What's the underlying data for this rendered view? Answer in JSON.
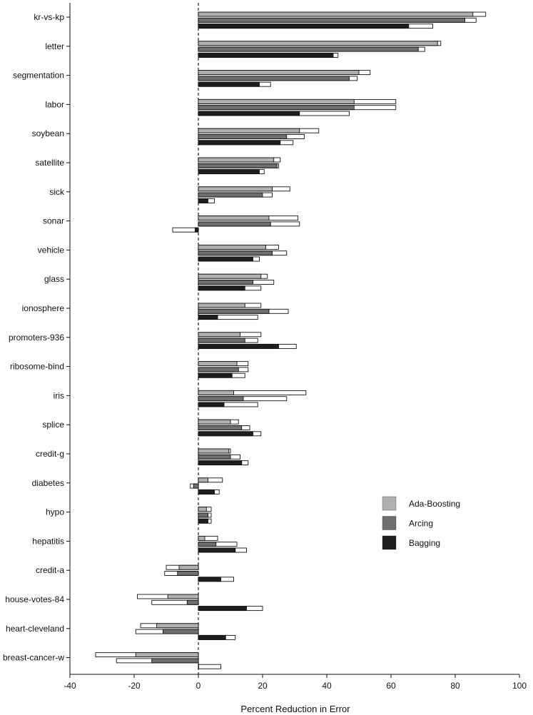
{
  "chart_data": {
    "type": "bar",
    "orientation": "horizontal",
    "xlabel": "Percent Reduction in Error",
    "xlim": [
      -40,
      100
    ],
    "xticks": [
      -40,
      -20,
      0,
      20,
      40,
      60,
      80,
      100
    ],
    "legend_position": "right",
    "categories": [
      "kr-vs-kp",
      "letter",
      "segmentation",
      "labor",
      "soybean",
      "satellite",
      "sick",
      "sonar",
      "vehicle",
      "glass",
      "ionosphere",
      "promoters-936",
      "ribosome-bind",
      "iris",
      "splice",
      "credit-g",
      "diabetes",
      "hypo",
      "hepatitis",
      "credit-a",
      "house-votes-84",
      "heart-cleveland",
      "breast-cancer-w"
    ],
    "series": [
      {
        "name": "Ada-Boosting",
        "color": "#b0b0b0",
        "values": [
          85.5,
          74.5,
          50,
          48.5,
          31.5,
          23.5,
          23,
          22,
          21,
          19.5,
          14.5,
          13,
          12,
          11,
          10,
          9.5,
          3,
          2.5,
          2,
          -6,
          -9.5,
          -13,
          -19.5
        ],
        "extended": [
          89.5,
          75.5,
          53.5,
          61.5,
          37.5,
          25.5,
          28.5,
          31,
          25,
          21.5,
          19.5,
          19.5,
          15.5,
          33.5,
          12.5,
          10,
          7.5,
          4,
          6,
          -10,
          -19,
          -18,
          -32
        ]
      },
      {
        "name": "Arcing",
        "color": "#6e6e6e",
        "values": [
          83,
          68.5,
          47,
          48.5,
          27.5,
          24.5,
          20,
          22.5,
          23,
          17,
          22,
          14.5,
          12.5,
          14,
          13.5,
          10,
          -1.5,
          3,
          5.5,
          -6.5,
          -3.5,
          -11,
          -14.5
        ],
        "extended": [
          86.5,
          70.5,
          49.5,
          61.5,
          33,
          25,
          23,
          31.5,
          27.5,
          23.5,
          28,
          18.5,
          15.5,
          27.5,
          16,
          13,
          -2.5,
          4,
          12,
          -10.5,
          -14.5,
          -19.5,
          -25.5
        ]
      },
      {
        "name": "Bagging",
        "color": "#1e1e1e",
        "values": [
          65.5,
          42,
          19,
          31.5,
          25.5,
          19,
          3,
          -1,
          17,
          14.5,
          6,
          25,
          10.5,
          8,
          17,
          13.5,
          5,
          3,
          11.5,
          7,
          15,
          8.5,
          0
        ],
        "extended": [
          73,
          43.5,
          22.5,
          47,
          29.5,
          20.5,
          5,
          -8,
          19,
          19.5,
          18.5,
          30.5,
          14.5,
          18.5,
          19.5,
          15.5,
          6.5,
          4,
          15,
          11,
          20,
          11.5,
          7
        ]
      }
    ]
  }
}
